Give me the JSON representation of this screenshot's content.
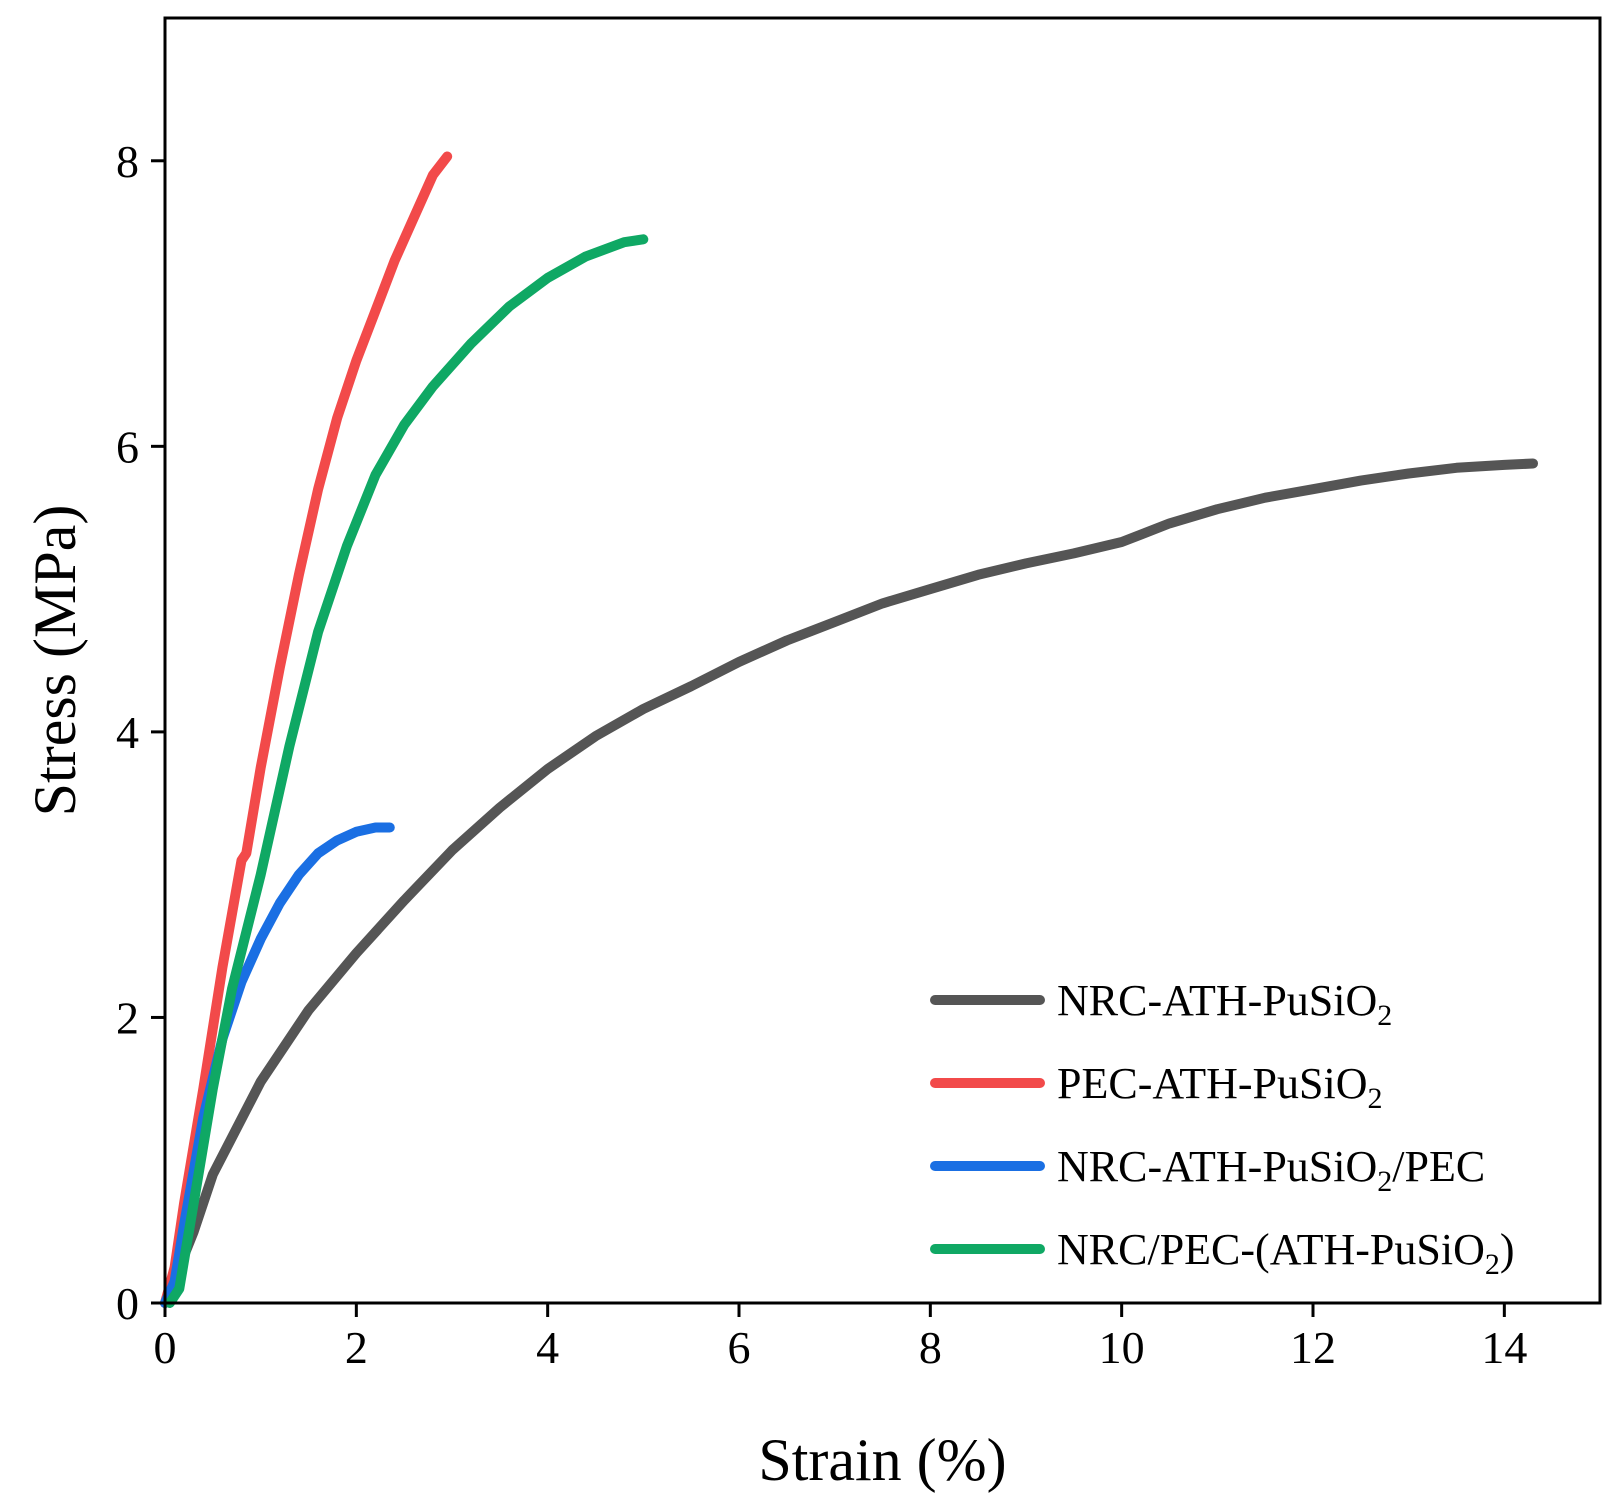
{
  "chart_data": {
    "type": "line",
    "title": "",
    "xlabel": "Strain (%)",
    "ylabel": "Stress (MPa)",
    "xlim": [
      0,
      15
    ],
    "ylim": [
      0,
      9
    ],
    "grid": false,
    "legend_position": "bottom-right",
    "x_ticks": [
      0,
      2,
      4,
      6,
      8,
      10,
      12,
      14
    ],
    "y_ticks": [
      0,
      2,
      4,
      6,
      8
    ],
    "series": [
      {
        "name": "NRC-ATH-PuSiO2",
        "label_main": "NRC-ATH-PuSiO",
        "label_sub": "2",
        "label_suffix": "",
        "color": "#555555",
        "x": [
          0,
          0.3,
          0.5,
          1.0,
          1.5,
          2.0,
          2.5,
          3.0,
          3.5,
          4.0,
          4.5,
          5.0,
          5.5,
          6.0,
          6.5,
          7.0,
          7.5,
          8.0,
          8.5,
          9.0,
          9.5,
          10.0,
          10.5,
          11.0,
          11.5,
          12.0,
          12.5,
          13.0,
          13.5,
          14.0,
          14.3
        ],
        "y": [
          0,
          0.5,
          0.9,
          1.55,
          2.05,
          2.45,
          2.82,
          3.17,
          3.47,
          3.74,
          3.97,
          4.16,
          4.32,
          4.49,
          4.64,
          4.77,
          4.9,
          5.0,
          5.1,
          5.18,
          5.25,
          5.33,
          5.46,
          5.56,
          5.64,
          5.7,
          5.76,
          5.81,
          5.85,
          5.87,
          5.88
        ]
      },
      {
        "name": "PEC-ATH-PuSiO2",
        "label_main": "PEC-ATH-PuSiO",
        "label_sub": "2",
        "label_suffix": "",
        "color": "#f24a4a",
        "x": [
          0,
          0.1,
          0.2,
          0.4,
          0.6,
          0.8,
          0.85,
          1.0,
          1.2,
          1.4,
          1.6,
          1.8,
          2.0,
          2.2,
          2.4,
          2.6,
          2.8,
          2.95
        ],
        "y": [
          0,
          0.25,
          0.7,
          1.5,
          2.35,
          3.1,
          3.15,
          3.75,
          4.45,
          5.1,
          5.7,
          6.2,
          6.6,
          6.95,
          7.3,
          7.6,
          7.9,
          8.03
        ]
      },
      {
        "name": "NRC-ATH-PuSiO2/PEC",
        "label_main": "NRC-ATH-PuSiO",
        "label_sub": "2",
        "label_suffix": "/PEC",
        "color": "#1a6fe3",
        "x": [
          0,
          0.1,
          0.2,
          0.4,
          0.6,
          0.8,
          1.0,
          1.2,
          1.4,
          1.6,
          1.8,
          2.0,
          2.2,
          2.35
        ],
        "y": [
          0,
          0.15,
          0.55,
          1.3,
          1.85,
          2.25,
          2.55,
          2.8,
          3.0,
          3.15,
          3.24,
          3.3,
          3.33,
          3.33
        ]
      },
      {
        "name": "NRC/PEC-(ATH-PuSiO2)",
        "label_main": "NRC/PEC-(ATH-PuSiO",
        "label_sub": "2",
        "label_suffix": ")",
        "color": "#0fa864",
        "x": [
          0.05,
          0.15,
          0.3,
          0.5,
          0.7,
          1.0,
          1.3,
          1.6,
          1.9,
          2.2,
          2.5,
          2.8,
          3.2,
          3.6,
          4.0,
          4.4,
          4.8,
          5.0
        ],
        "y": [
          0,
          0.1,
          0.7,
          1.5,
          2.2,
          3.0,
          3.9,
          4.7,
          5.3,
          5.8,
          6.15,
          6.42,
          6.72,
          6.98,
          7.18,
          7.33,
          7.43,
          7.45
        ]
      }
    ]
  }
}
